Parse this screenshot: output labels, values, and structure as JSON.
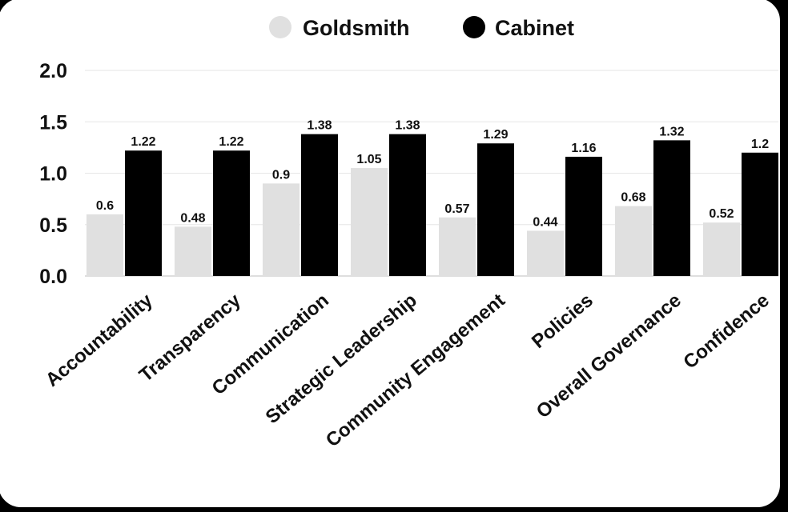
{
  "chart_data": {
    "type": "bar",
    "categories": [
      "Accountability",
      "Transparency",
      "Communication",
      "Strategic Leadership",
      "Community Engagement",
      "Policies",
      "Overall Governance",
      "Confidence"
    ],
    "series": [
      {
        "name": "Goldsmith",
        "color": "#e0e0e0",
        "values": [
          0.6,
          0.48,
          0.9,
          1.05,
          0.57,
          0.44,
          0.68,
          0.52
        ],
        "labels": [
          "0.6",
          "0.48",
          "0.9",
          "1.05",
          "0.57",
          "0.44",
          "0.68",
          "0.52"
        ]
      },
      {
        "name": "Cabinet",
        "color": "#000000",
        "values": [
          1.22,
          1.22,
          1.38,
          1.38,
          1.29,
          1.16,
          1.32,
          1.2
        ],
        "labels": [
          "1.22",
          "1.22",
          "1.38",
          "1.38",
          "1.29",
          "1.16",
          "1.32",
          "1.2"
        ]
      }
    ],
    "yticks": [
      "0.0",
      "0.5",
      "1.0",
      "1.5",
      "2.0"
    ],
    "ylim": [
      0,
      2.0
    ],
    "grid": true,
    "legend": "top"
  }
}
